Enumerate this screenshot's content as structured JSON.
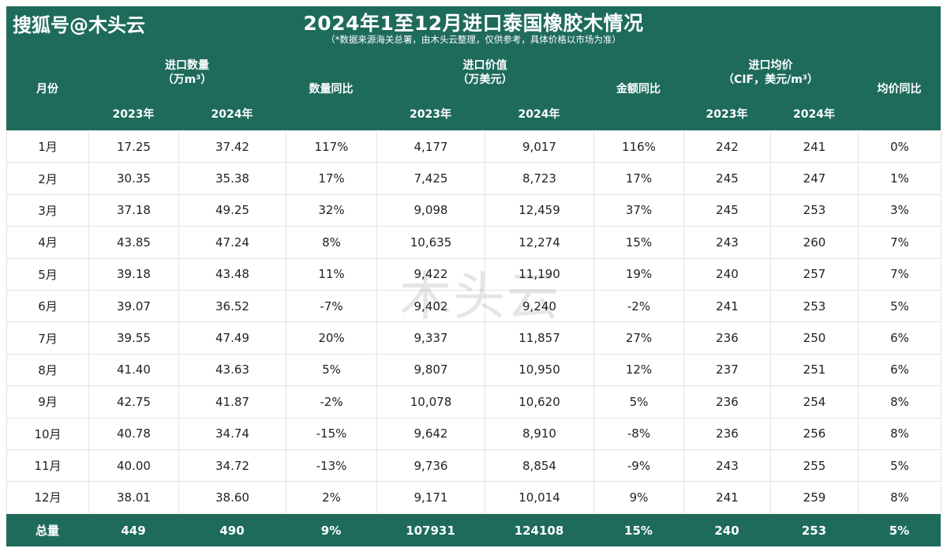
{
  "logo": "搜狐号@木头云",
  "title": "2024年1至12月进口泰国橡胶木情况",
  "subtitle": "（*数据来源海关总署，由木头云整理，仅供参考，具体价格以市场为准）",
  "watermark": "木头云",
  "headers": {
    "month": "月份",
    "qty_group_line1": "进口数量",
    "qty_group_line2": "（万m³）",
    "qty_yoy": "数量同比",
    "val_group_line1": "进口价值",
    "val_group_line2": "（万美元）",
    "val_yoy": "金额同比",
    "price_group_line1": "进口均价",
    "price_group_line2": "（CIF，美元/m³）",
    "price_yoy": "均价同比",
    "y2023": "2023年",
    "y2024": "2024年"
  },
  "colors": {
    "header_bg": "#1e6b5c",
    "increase": "#e0262a",
    "decrease": "#1e6b5c"
  },
  "chart_data": {
    "type": "table",
    "title": "2024年1至12月进口泰国橡胶木情况",
    "columns": [
      "月份",
      "进口数量2023年",
      "进口数量2024年",
      "数量同比",
      "进口价值2023年",
      "进口价值2024年",
      "金额同比",
      "进口均价2023年",
      "进口均价2024年",
      "均价同比"
    ],
    "rows": [
      [
        "1月",
        "17.25",
        "37.42",
        "117%",
        "4,177",
        "9,017",
        "116%",
        "242",
        "241",
        "0%"
      ],
      [
        "2月",
        "30.35",
        "35.38",
        "17%",
        "7,425",
        "8,723",
        "17%",
        "245",
        "247",
        "1%"
      ],
      [
        "3月",
        "37.18",
        "49.25",
        "32%",
        "9,098",
        "12,459",
        "37%",
        "245",
        "253",
        "3%"
      ],
      [
        "4月",
        "43.85",
        "47.24",
        "8%",
        "10,635",
        "12,274",
        "15%",
        "243",
        "260",
        "7%"
      ],
      [
        "5月",
        "39.18",
        "43.48",
        "11%",
        "9,422",
        "11,190",
        "19%",
        "240",
        "257",
        "7%"
      ],
      [
        "6月",
        "39.07",
        "36.52",
        "-7%",
        "9,402",
        "9,240",
        "-2%",
        "241",
        "253",
        "5%"
      ],
      [
        "7月",
        "39.55",
        "47.49",
        "20%",
        "9,337",
        "11,857",
        "27%",
        "236",
        "250",
        "6%"
      ],
      [
        "8月",
        "41.40",
        "43.63",
        "5%",
        "9,807",
        "10,950",
        "12%",
        "237",
        "251",
        "6%"
      ],
      [
        "9月",
        "42.75",
        "41.87",
        "-2%",
        "10,078",
        "10,620",
        "5%",
        "236",
        "254",
        "8%"
      ],
      [
        "10月",
        "40.78",
        "34.74",
        "-15%",
        "9,642",
        "8,910",
        "-8%",
        "236",
        "256",
        "8%"
      ],
      [
        "11月",
        "40.00",
        "34.72",
        "-13%",
        "9,736",
        "8,854",
        "-9%",
        "243",
        "255",
        "5%"
      ],
      [
        "12月",
        "38.01",
        "38.60",
        "2%",
        "9,171",
        "10,014",
        "9%",
        "241",
        "259",
        "8%"
      ]
    ],
    "total": [
      "总量",
      "449",
      "490",
      "9%",
      "107931",
      "124108",
      "15%",
      "240",
      "253",
      "5%"
    ]
  }
}
